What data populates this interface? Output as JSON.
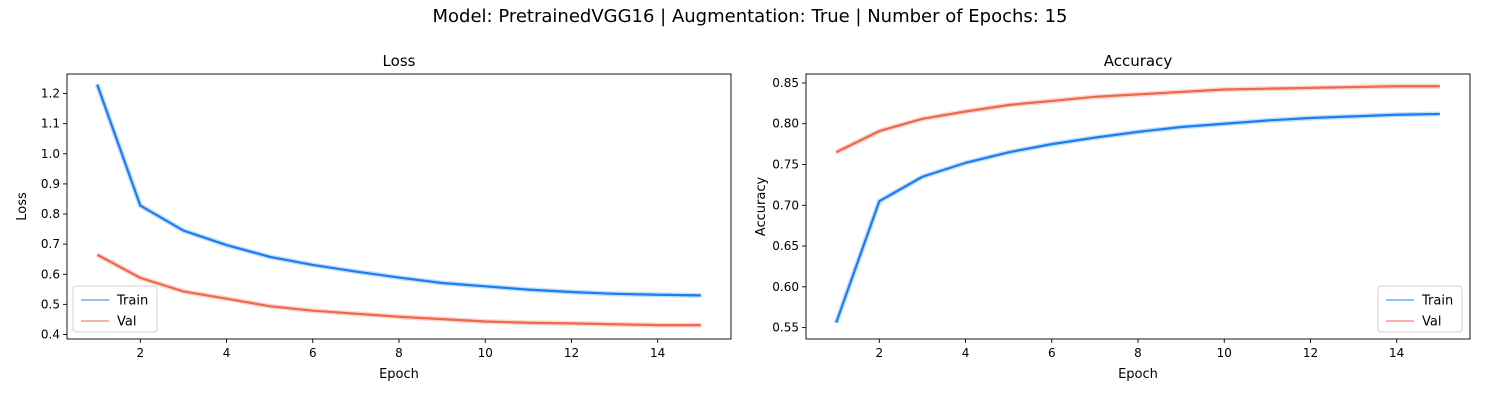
{
  "figure": {
    "title": "Model: PretrainedVGG16 | Augmentation: True | Number of Epochs: 15"
  },
  "colors": {
    "train": "#1a7ef2",
    "train_band": "#8fc3f7",
    "val": "#f0674e",
    "val_band": "#f7b3a6"
  },
  "chart_data": [
    {
      "type": "line",
      "title": "Loss",
      "xlabel": "Epoch",
      "ylabel": "Loss",
      "xlim": [
        0.3,
        15.7
      ],
      "ylim": [
        0.385,
        1.265
      ],
      "xticks": [
        2,
        4,
        6,
        8,
        10,
        12,
        14
      ],
      "yticks": [
        0.4,
        0.5,
        0.6,
        0.7,
        0.8,
        0.9,
        1.0,
        1.1,
        1.2
      ],
      "ytick_labels": [
        "0.4",
        "0.5",
        "0.6",
        "0.7",
        "0.8",
        "0.9",
        "1.0",
        "1.1",
        "1.2"
      ],
      "grid": false,
      "legend": "lower-left",
      "x": [
        1,
        2,
        3,
        4,
        5,
        6,
        7,
        8,
        9,
        10,
        11,
        12,
        13,
        14,
        15
      ],
      "series": [
        {
          "name": "Train",
          "values": [
            1.23,
            0.828,
            0.745,
            0.697,
            0.658,
            0.631,
            0.609,
            0.589,
            0.571,
            0.56,
            0.549,
            0.541,
            0.535,
            0.532,
            0.53
          ]
        },
        {
          "name": "Val",
          "values": [
            0.665,
            0.588,
            0.543,
            0.519,
            0.494,
            0.479,
            0.469,
            0.459,
            0.451,
            0.443,
            0.439,
            0.437,
            0.434,
            0.431,
            0.431
          ]
        }
      ]
    },
    {
      "type": "line",
      "title": "Accuracy",
      "xlabel": "Epoch",
      "ylabel": "Accuracy",
      "xlim": [
        0.3,
        15.7
      ],
      "ylim": [
        0.536,
        0.861
      ],
      "xticks": [
        2,
        4,
        6,
        8,
        10,
        12,
        14
      ],
      "yticks": [
        0.55,
        0.6,
        0.65,
        0.7,
        0.75,
        0.8,
        0.85
      ],
      "ytick_labels": [
        "0.55",
        "0.60",
        "0.65",
        "0.70",
        "0.75",
        "0.80",
        "0.85"
      ],
      "grid": false,
      "legend": "lower-right",
      "x": [
        1,
        2,
        3,
        4,
        5,
        6,
        7,
        8,
        9,
        10,
        11,
        12,
        13,
        14,
        15
      ],
      "series": [
        {
          "name": "Train",
          "values": [
            0.556,
            0.705,
            0.735,
            0.752,
            0.765,
            0.775,
            0.783,
            0.79,
            0.796,
            0.8,
            0.804,
            0.807,
            0.809,
            0.811,
            0.812
          ]
        },
        {
          "name": "Val",
          "values": [
            0.765,
            0.791,
            0.806,
            0.815,
            0.823,
            0.828,
            0.833,
            0.836,
            0.839,
            0.842,
            0.843,
            0.844,
            0.845,
            0.846,
            0.846
          ]
        }
      ]
    }
  ]
}
